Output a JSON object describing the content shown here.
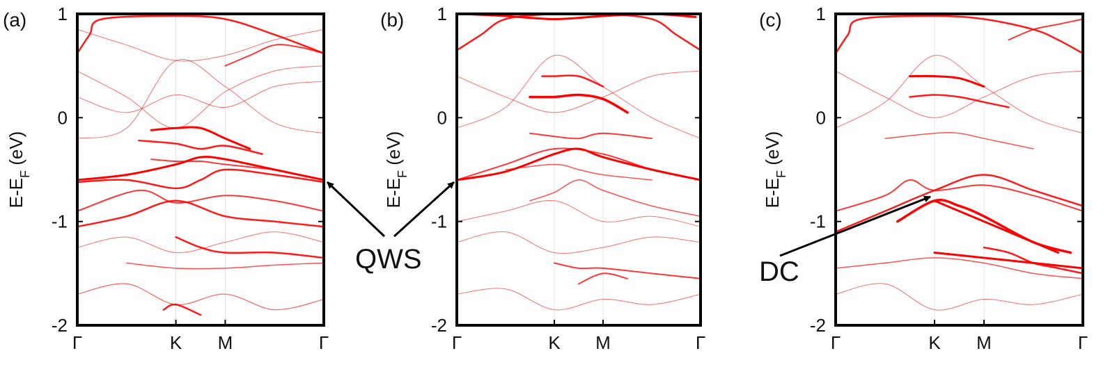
{
  "chart_data": [
    {
      "panel": "(a)",
      "type": "line",
      "ylabel": "E-E_F (eV)",
      "ylim": [
        -2,
        1
      ],
      "yticks": [
        1,
        0,
        -1,
        -2
      ],
      "xticks": [
        {
          "label": "Γ",
          "pos": 0
        },
        {
          "label": "K",
          "pos": 0.4
        },
        {
          "label": "M",
          "pos": 0.6
        },
        {
          "label": "Γ",
          "pos": 1
        }
      ],
      "color": "#ff0000",
      "annotations": [],
      "bands": [
        {
          "x": [
            0,
            0.2,
            0.4,
            0.5,
            0.6,
            0.8,
            1
          ],
          "y": [
            -0.6,
            -0.55,
            -0.45,
            -0.38,
            -0.4,
            -0.5,
            -0.6
          ],
          "weight": 3
        },
        {
          "x": [
            0,
            0.2,
            0.4,
            0.5,
            0.6,
            0.8,
            1
          ],
          "y": [
            -0.62,
            -0.6,
            -0.68,
            -0.6,
            -0.5,
            -0.55,
            -0.62
          ],
          "weight": 2.5
        },
        {
          "x": [
            0,
            0.2,
            0.4,
            0.6,
            0.8,
            1
          ],
          "y": [
            -1.05,
            -0.95,
            -0.8,
            -0.95,
            -1.0,
            -1.05
          ],
          "weight": 2.5
        },
        {
          "x": [
            0,
            0.25,
            0.4,
            0.6,
            0.8,
            1
          ],
          "y": [
            -0.9,
            -0.7,
            -0.82,
            -0.75,
            -0.8,
            -0.9
          ],
          "weight": 2
        },
        {
          "x": [
            0.3,
            0.4,
            0.5,
            0.6,
            0.7
          ],
          "y": [
            -0.12,
            -0.1,
            -0.1,
            -0.2,
            -0.3
          ],
          "weight": 3
        },
        {
          "x": [
            0.25,
            0.4,
            0.5,
            0.6,
            0.75
          ],
          "y": [
            -0.22,
            -0.25,
            -0.3,
            -0.27,
            -0.35
          ],
          "weight": 2.5
        },
        {
          "x": [
            0.3,
            0.4,
            0.5,
            0.6,
            0.8
          ],
          "y": [
            -0.4,
            -0.42,
            -0.42,
            -0.45,
            -0.5
          ],
          "weight": 2
        },
        {
          "x": [
            0.4,
            0.5,
            0.6,
            0.8,
            1
          ],
          "y": [
            -1.15,
            -1.25,
            -1.3,
            -1.3,
            -1.35
          ],
          "weight": 2.5
        },
        {
          "x": [
            0.2,
            0.4,
            0.6,
            0.8,
            1
          ],
          "y": [
            -1.4,
            -1.45,
            -1.45,
            -1.42,
            -1.4
          ],
          "weight": 1.5
        },
        {
          "x": [
            0,
            0.05,
            0.1,
            0.4,
            0.6,
            0.8,
            1
          ],
          "y": [
            0.62,
            0.8,
            0.95,
            0.98,
            0.95,
            0.8,
            0.62
          ],
          "weight": 2.5
        },
        {
          "x": [
            0.6,
            0.7,
            0.8,
            0.9,
            1
          ],
          "y": [
            0.5,
            0.6,
            0.7,
            0.68,
            0.62
          ],
          "weight": 2
        },
        {
          "x": [
            0,
            0.2,
            0.4,
            0.6,
            0.8,
            1
          ],
          "y": [
            0.45,
            0.2,
            -0.1,
            0.25,
            0.45,
            0.5
          ],
          "weight": 1
        },
        {
          "x": [
            0,
            0.2,
            0.4,
            0.6,
            0.8,
            1
          ],
          "y": [
            0.2,
            0.05,
            0.22,
            0.1,
            0.3,
            0.35
          ],
          "weight": 1
        },
        {
          "x": [
            0,
            0.2,
            0.4,
            0.6,
            0.8,
            1
          ],
          "y": [
            -0.2,
            -0.1,
            0.55,
            0.3,
            -0.05,
            -0.15
          ],
          "weight": 1
        },
        {
          "x": [
            0,
            0.2,
            0.4,
            0.6,
            0.8,
            1
          ],
          "y": [
            -1.25,
            -1.15,
            -1.3,
            -1.2,
            -1.1,
            -1.2
          ],
          "weight": 1
        },
        {
          "x": [
            0,
            0.2,
            0.4,
            0.6,
            0.8,
            1
          ],
          "y": [
            -1.7,
            -1.6,
            -1.8,
            -1.7,
            -1.85,
            -1.75
          ],
          "weight": 1.2
        },
        {
          "x": [
            0.35,
            0.4,
            0.5
          ],
          "y": [
            -1.85,
            -1.8,
            -1.9
          ],
          "weight": 2.5
        },
        {
          "x": [
            0,
            0.2,
            0.4,
            0.6,
            0.8,
            1
          ],
          "y": [
            0.85,
            0.7,
            0.55,
            0.6,
            0.75,
            0.85
          ],
          "weight": 1
        }
      ]
    },
    {
      "panel": "(b)",
      "type": "line",
      "ylabel": "E-E_F (eV)",
      "ylim": [
        -2,
        1
      ],
      "yticks": [
        1,
        0,
        -1,
        -2
      ],
      "xticks": [
        {
          "label": "Γ",
          "pos": 0
        },
        {
          "label": "K",
          "pos": 0.4
        },
        {
          "label": "M",
          "pos": 0.6
        },
        {
          "label": "Γ",
          "pos": 1
        }
      ],
      "color": "#ff0000",
      "annotations": [],
      "bands": [
        {
          "x": [
            0,
            0.2,
            0.4,
            0.5,
            0.6,
            0.8,
            1
          ],
          "y": [
            -0.6,
            -0.52,
            -0.35,
            -0.3,
            -0.38,
            -0.5,
            -0.6
          ],
          "weight": 3
        },
        {
          "x": [
            0,
            0.2,
            0.4,
            0.6,
            0.8,
            1
          ],
          "y": [
            -0.6,
            -0.45,
            -0.3,
            -0.35,
            -0.5,
            -0.6
          ],
          "weight": 2
        },
        {
          "x": [
            0.3,
            0.4,
            0.5,
            0.6,
            0.7
          ],
          "y": [
            0.2,
            0.2,
            0.22,
            0.18,
            0.05
          ],
          "weight": 3.5
        },
        {
          "x": [
            0.35,
            0.4,
            0.5,
            0.6
          ],
          "y": [
            0.4,
            0.4,
            0.4,
            0.3
          ],
          "weight": 2.5
        },
        {
          "x": [
            0,
            0.1,
            0.2,
            0.4,
            0.6,
            0.8,
            0.9,
            1
          ],
          "y": [
            0.65,
            0.8,
            0.95,
            1.0,
            1.0,
            0.95,
            0.8,
            0.65
          ],
          "weight": 2.5
        },
        {
          "x": [
            0.02,
            0.2,
            0.4,
            0.6,
            0.8,
            0.98
          ],
          "y": [
            1.0,
            0.98,
            0.95,
            0.98,
            1.0,
            0.97
          ],
          "weight": 3
        },
        {
          "x": [
            0.3,
            0.4,
            0.5,
            0.6,
            0.8
          ],
          "y": [
            -0.15,
            -0.18,
            -0.2,
            -0.15,
            -0.2
          ],
          "weight": 2
        },
        {
          "x": [
            0.2,
            0.4,
            0.5,
            0.6,
            0.8
          ],
          "y": [
            -0.5,
            -0.45,
            -0.5,
            -0.55,
            -0.6
          ],
          "weight": 1.5
        },
        {
          "x": [
            0.3,
            0.4,
            0.5,
            0.6,
            0.8,
            1
          ],
          "y": [
            -0.8,
            -0.72,
            -0.6,
            -0.7,
            -0.85,
            -0.95
          ],
          "weight": 1.5
        },
        {
          "x": [
            0.4,
            0.5,
            0.6,
            0.8,
            1
          ],
          "y": [
            -1.4,
            -1.45,
            -1.45,
            -1.5,
            -1.55
          ],
          "weight": 2
        },
        {
          "x": [
            0.5,
            0.6,
            0.7
          ],
          "y": [
            -1.6,
            -1.5,
            -1.55
          ],
          "weight": 2
        },
        {
          "x": [
            0,
            0.2,
            0.4,
            0.6,
            0.8,
            1
          ],
          "y": [
            0.4,
            0.2,
            0.05,
            0.2,
            0.4,
            0.45
          ],
          "weight": 1
        },
        {
          "x": [
            0,
            0.2,
            0.4,
            0.6,
            0.8,
            1
          ],
          "y": [
            -0.1,
            0.1,
            0.6,
            0.3,
            0.0,
            -0.2
          ],
          "weight": 1
        },
        {
          "x": [
            0,
            0.2,
            0.4,
            0.6,
            0.8,
            1
          ],
          "y": [
            -1.0,
            -0.9,
            -0.8,
            -1.0,
            -0.95,
            -1.05
          ],
          "weight": 1
        },
        {
          "x": [
            0,
            0.2,
            0.4,
            0.6,
            0.8,
            1
          ],
          "y": [
            -1.2,
            -1.1,
            -1.3,
            -1.25,
            -1.15,
            -1.2
          ],
          "weight": 1
        },
        {
          "x": [
            0,
            0.2,
            0.4,
            0.6,
            0.8,
            1
          ],
          "y": [
            -1.7,
            -1.65,
            -1.85,
            -1.75,
            -1.8,
            -1.7
          ],
          "weight": 1
        }
      ]
    },
    {
      "panel": "(c)",
      "type": "line",
      "ylabel": "E-E_F (eV)",
      "ylim": [
        -2,
        1
      ],
      "yticks": [
        1,
        0,
        -1,
        -2
      ],
      "xticks": [
        {
          "label": "Γ",
          "pos": 0
        },
        {
          "label": "K",
          "pos": 0.4
        },
        {
          "label": "M",
          "pos": 0.6
        },
        {
          "label": "Γ",
          "pos": 1
        }
      ],
      "color": "#ff0000",
      "annotations": [],
      "bands": [
        {
          "x": [
            0.25,
            0.4,
            0.5,
            0.6,
            0.8,
            0.95
          ],
          "y": [
            -1.0,
            -0.8,
            -0.85,
            -0.95,
            -1.2,
            -1.3
          ],
          "weight": 3.5
        },
        {
          "x": [
            0.4,
            0.5,
            0.6,
            0.7,
            0.8,
            0.9
          ],
          "y": [
            -0.8,
            -0.9,
            -1.0,
            -1.1,
            -1.2,
            -1.3
          ],
          "weight": 3
        },
        {
          "x": [
            0,
            0.2,
            0.4,
            0.6,
            0.8,
            1
          ],
          "y": [
            -1.1,
            -0.9,
            -0.7,
            -0.55,
            -0.7,
            -0.85
          ],
          "weight": 2.5
        },
        {
          "x": [
            0,
            0.2,
            0.3,
            0.4,
            0.6,
            0.8,
            1
          ],
          "y": [
            -0.9,
            -0.75,
            -0.6,
            -0.7,
            -0.65,
            -0.75,
            -0.9
          ],
          "weight": 2
        },
        {
          "x": [
            0.3,
            0.4,
            0.5,
            0.6
          ],
          "y": [
            0.4,
            0.4,
            0.38,
            0.3
          ],
          "weight": 3
        },
        {
          "x": [
            0.3,
            0.4,
            0.5,
            0.6,
            0.7
          ],
          "y": [
            0.2,
            0.22,
            0.2,
            0.15,
            0.1
          ],
          "weight": 2.5
        },
        {
          "x": [
            0.4,
            0.6,
            0.8,
            1
          ],
          "y": [
            -1.3,
            -1.35,
            -1.4,
            -1.45
          ],
          "weight": 3
        },
        {
          "x": [
            0.6,
            0.7,
            0.8,
            0.9,
            1
          ],
          "y": [
            -1.25,
            -1.3,
            -1.4,
            -1.45,
            -1.5
          ],
          "weight": 2.5
        },
        {
          "x": [
            0,
            0.2,
            0.4,
            0.6,
            0.8,
            1
          ],
          "y": [
            -1.45,
            -1.4,
            -1.35,
            -1.4,
            -1.5,
            -1.55
          ],
          "weight": 1.5
        },
        {
          "x": [
            0,
            0.05,
            0.1,
            0.4,
            0.6,
            0.8,
            0.9,
            1
          ],
          "y": [
            0.62,
            0.8,
            0.95,
            0.98,
            0.95,
            0.85,
            0.75,
            0.62
          ],
          "weight": 2.5
        },
        {
          "x": [
            0.7,
            0.8,
            0.9,
            1
          ],
          "y": [
            0.75,
            0.85,
            0.9,
            0.95
          ],
          "weight": 2
        },
        {
          "x": [
            0.2,
            0.4,
            0.5,
            0.6,
            0.8
          ],
          "y": [
            -0.2,
            -0.15,
            -0.15,
            -0.2,
            -0.3
          ],
          "weight": 1.5
        },
        {
          "x": [
            0,
            0.2,
            0.4,
            0.6,
            0.8,
            1
          ],
          "y": [
            0.45,
            0.2,
            0.0,
            0.2,
            0.4,
            0.45
          ],
          "weight": 1
        },
        {
          "x": [
            0,
            0.2,
            0.4,
            0.6,
            0.8,
            1
          ],
          "y": [
            -0.1,
            0.15,
            0.6,
            0.3,
            0.0,
            -0.15
          ],
          "weight": 1
        },
        {
          "x": [
            0,
            0.2,
            0.4,
            0.6,
            0.8,
            1
          ],
          "y": [
            -1.7,
            -1.6,
            -1.85,
            -1.75,
            -1.8,
            -1.7
          ],
          "weight": 1
        }
      ]
    }
  ],
  "annotations": [
    {
      "text": "QWS",
      "label_anchor": [
        0,
        0
      ],
      "targets": []
    },
    {
      "text": "DC",
      "label_anchor": [
        0,
        0
      ],
      "targets": []
    }
  ]
}
